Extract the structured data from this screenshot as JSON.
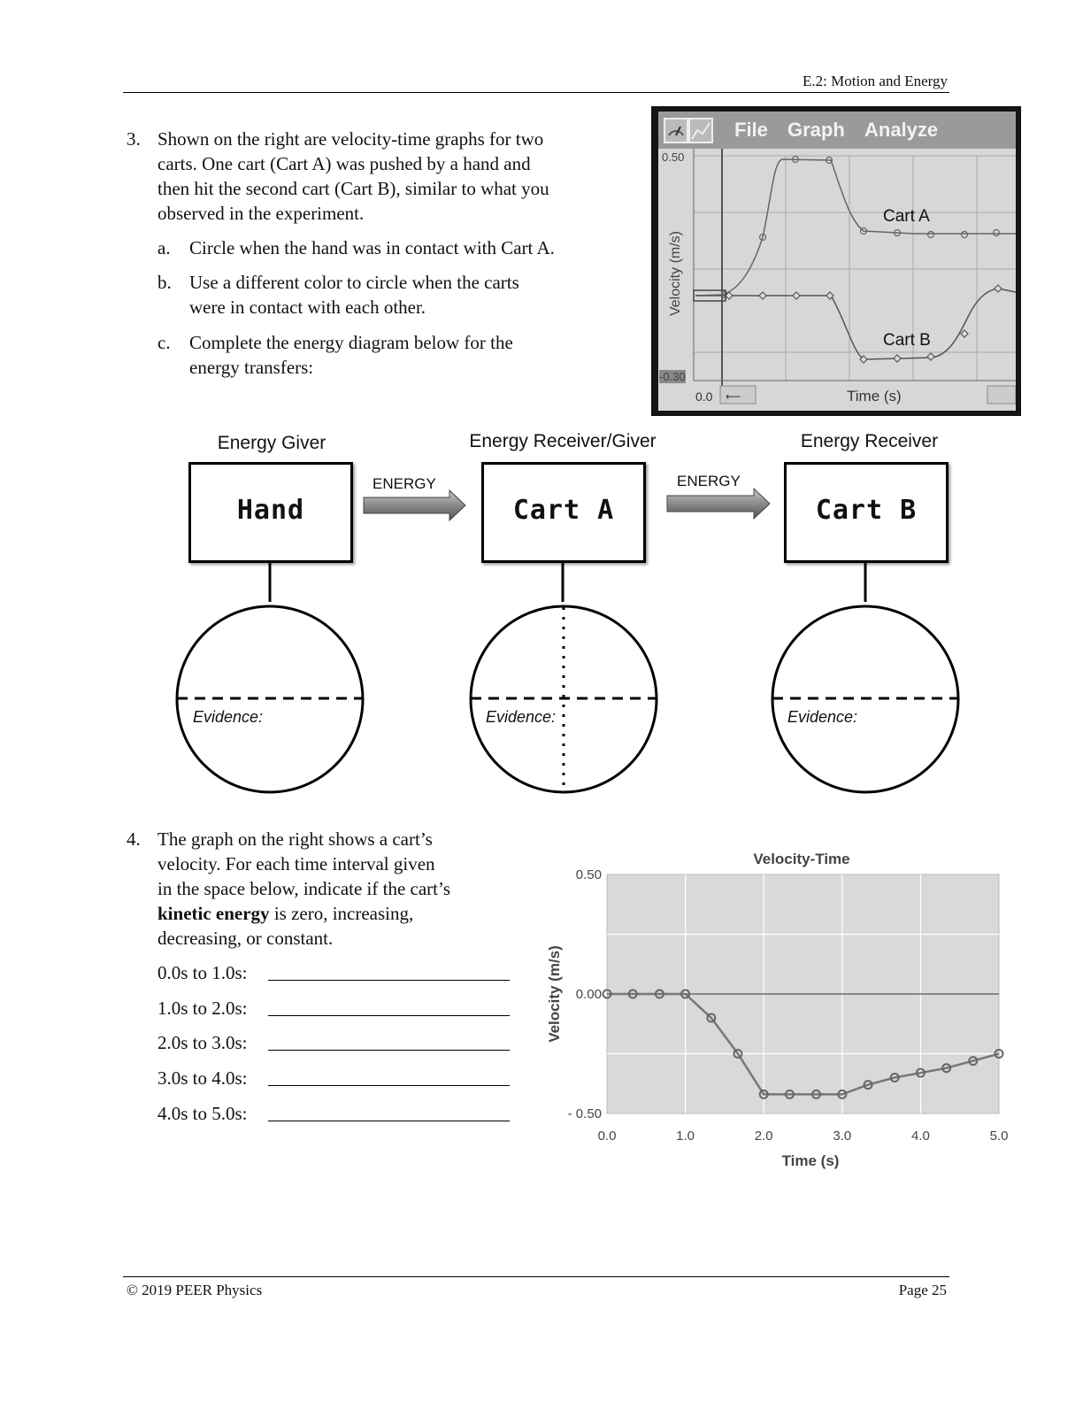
{
  "header": {
    "title": "E.2: Motion and Energy"
  },
  "question3": {
    "number": "3.",
    "lines": [
      "Shown on the right are velocity-time graphs for two",
      "carts.  One cart (Cart A) was pushed by a hand and",
      "then hit the second cart (Cart B), similar to what you",
      "observed in the experiment."
    ],
    "parts": [
      {
        "letter": "a.",
        "lines": [
          "Circle when the hand was in contact with Cart A."
        ]
      },
      {
        "letter": "b.",
        "lines": [
          "Use a different color to circle when the carts",
          "were in contact with each other."
        ]
      },
      {
        "letter": "c.",
        "lines": [
          "Complete the energy diagram below for the",
          "energy transfers:"
        ]
      }
    ]
  },
  "logger": {
    "menu": [
      "File",
      "Graph",
      "Analyze"
    ],
    "ymax_label": "0.50",
    "ymin_label": "-0.30",
    "x_start_label": "0.0",
    "xlabel": "Time (s)",
    "ylabel": "Velocity (m/s)",
    "cart_a_label": "Cart A",
    "cart_b_label": "Cart B"
  },
  "diagram": {
    "roles": [
      "Energy Giver",
      "Energy Receiver/Giver",
      "Energy Receiver"
    ],
    "boxes": [
      "Hand",
      "Cart A",
      "Cart B"
    ],
    "arrow_label": "ENERGY",
    "evidence_label": "Evidence:"
  },
  "question4": {
    "number": "4.",
    "lines": [
      "The graph on the right shows a cart’s",
      "velocity.  For each time interval given",
      "in the space below, indicate if the cart’s"
    ],
    "line4_bold": "kinetic energy",
    "line4_rest": " is zero, increasing,",
    "line5": "decreasing, or constant.",
    "intervals": [
      "0.0s to 1.0s:",
      "1.0s to 2.0s:",
      "2.0s to 3.0s:",
      "3.0s to 4.0s:",
      "4.0s to 5.0s:"
    ]
  },
  "chart_data": {
    "type": "line",
    "title": "Velocity-Time",
    "xlabel": "Time (s)",
    "ylabel": "Velocity (m/s)",
    "xlim": [
      0,
      5
    ],
    "ylim": [
      -0.5,
      0.5
    ],
    "x_ticks": [
      "0.0",
      "1.0",
      "2.0",
      "3.0",
      "4.0",
      "5.0"
    ],
    "y_ticks": [
      "0.50",
      "0.00",
      "- 0.50"
    ],
    "grid": true,
    "series": [
      {
        "x": [
          0.0,
          0.33,
          0.67,
          1.0,
          1.33,
          1.67,
          2.0,
          2.33,
          2.67,
          3.0,
          3.33,
          3.67,
          4.0,
          4.33,
          4.67,
          5.0
        ],
        "y": [
          0.0,
          0.0,
          0.0,
          0.0,
          -0.1,
          -0.25,
          -0.42,
          -0.42,
          -0.42,
          -0.42,
          -0.38,
          -0.35,
          -0.33,
          -0.31,
          -0.28,
          -0.25
        ]
      }
    ]
  },
  "footer": {
    "copyright": "© 2019 PEER Physics",
    "page": "Page 25"
  }
}
